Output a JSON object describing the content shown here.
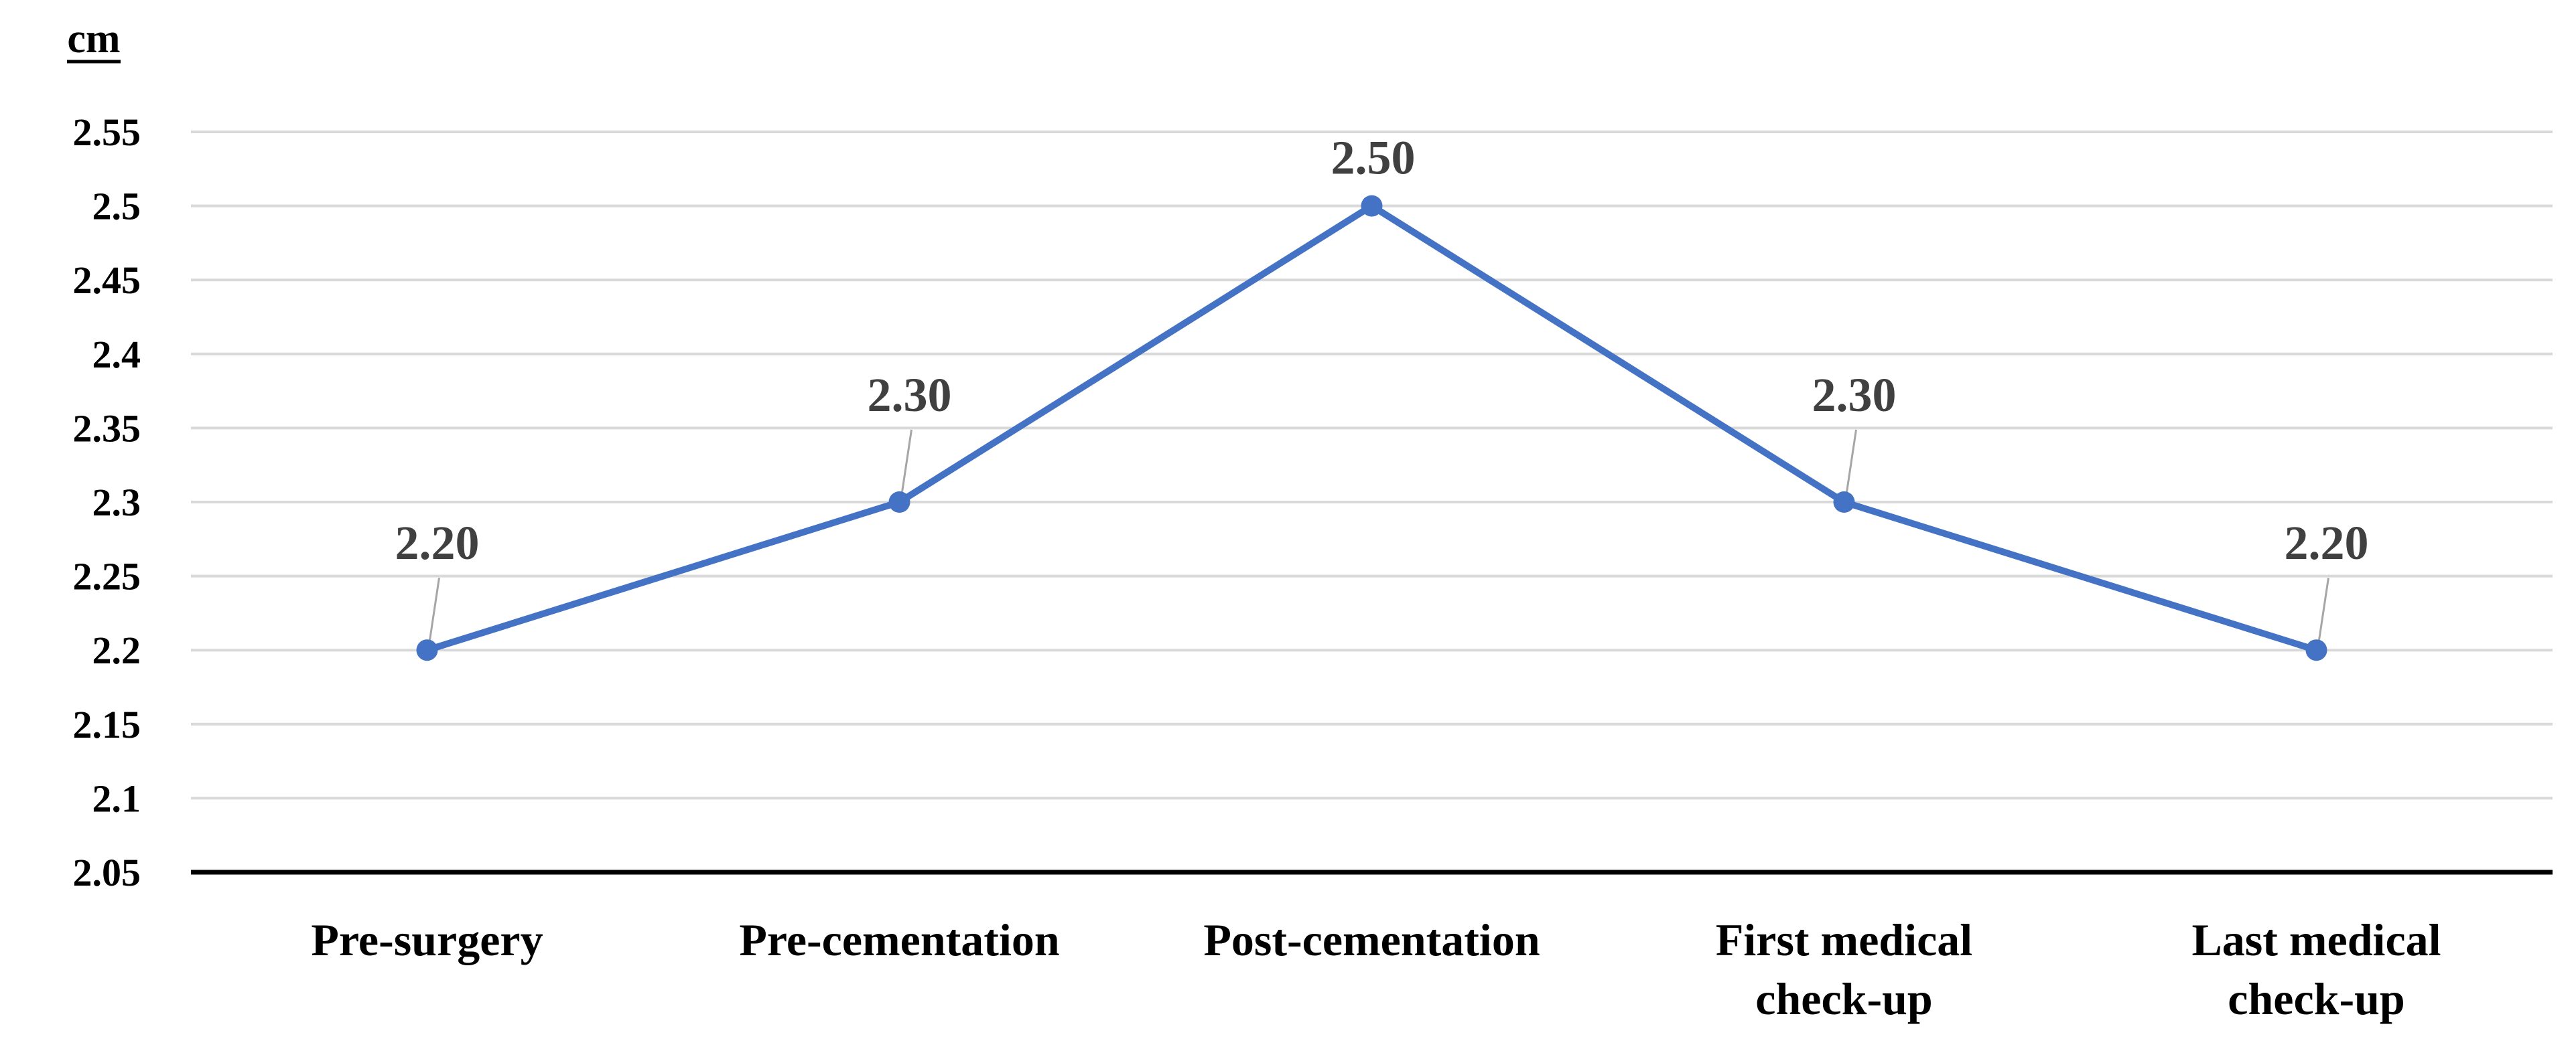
{
  "chart_data": {
    "type": "line",
    "ylabel": "cm",
    "categories": [
      "Pre-surgery",
      "Pre-cementation",
      "Post-cementation",
      "First medical check-up",
      "Last medical check-up"
    ],
    "category_lines": [
      [
        "Pre-surgery"
      ],
      [
        "Pre-cementation"
      ],
      [
        "Post-cementation"
      ],
      [
        "First medical",
        "check-up"
      ],
      [
        "Last medical",
        "check-up"
      ]
    ],
    "series": [
      {
        "values": [
          2.2,
          2.3,
          2.5,
          2.3,
          2.2
        ],
        "color": "#4472C4"
      }
    ],
    "data_labels": [
      "2.20",
      "2.30",
      "2.50",
      "2.30",
      "2.20"
    ],
    "ylim": [
      2.05,
      2.55
    ],
    "yticks": [
      "2.55",
      "2.5",
      "2.45",
      "2.4",
      "2.35",
      "2.3",
      "2.25",
      "2.2",
      "2.15",
      "2.1",
      "2.05"
    ],
    "grid": true,
    "legend": "none"
  }
}
